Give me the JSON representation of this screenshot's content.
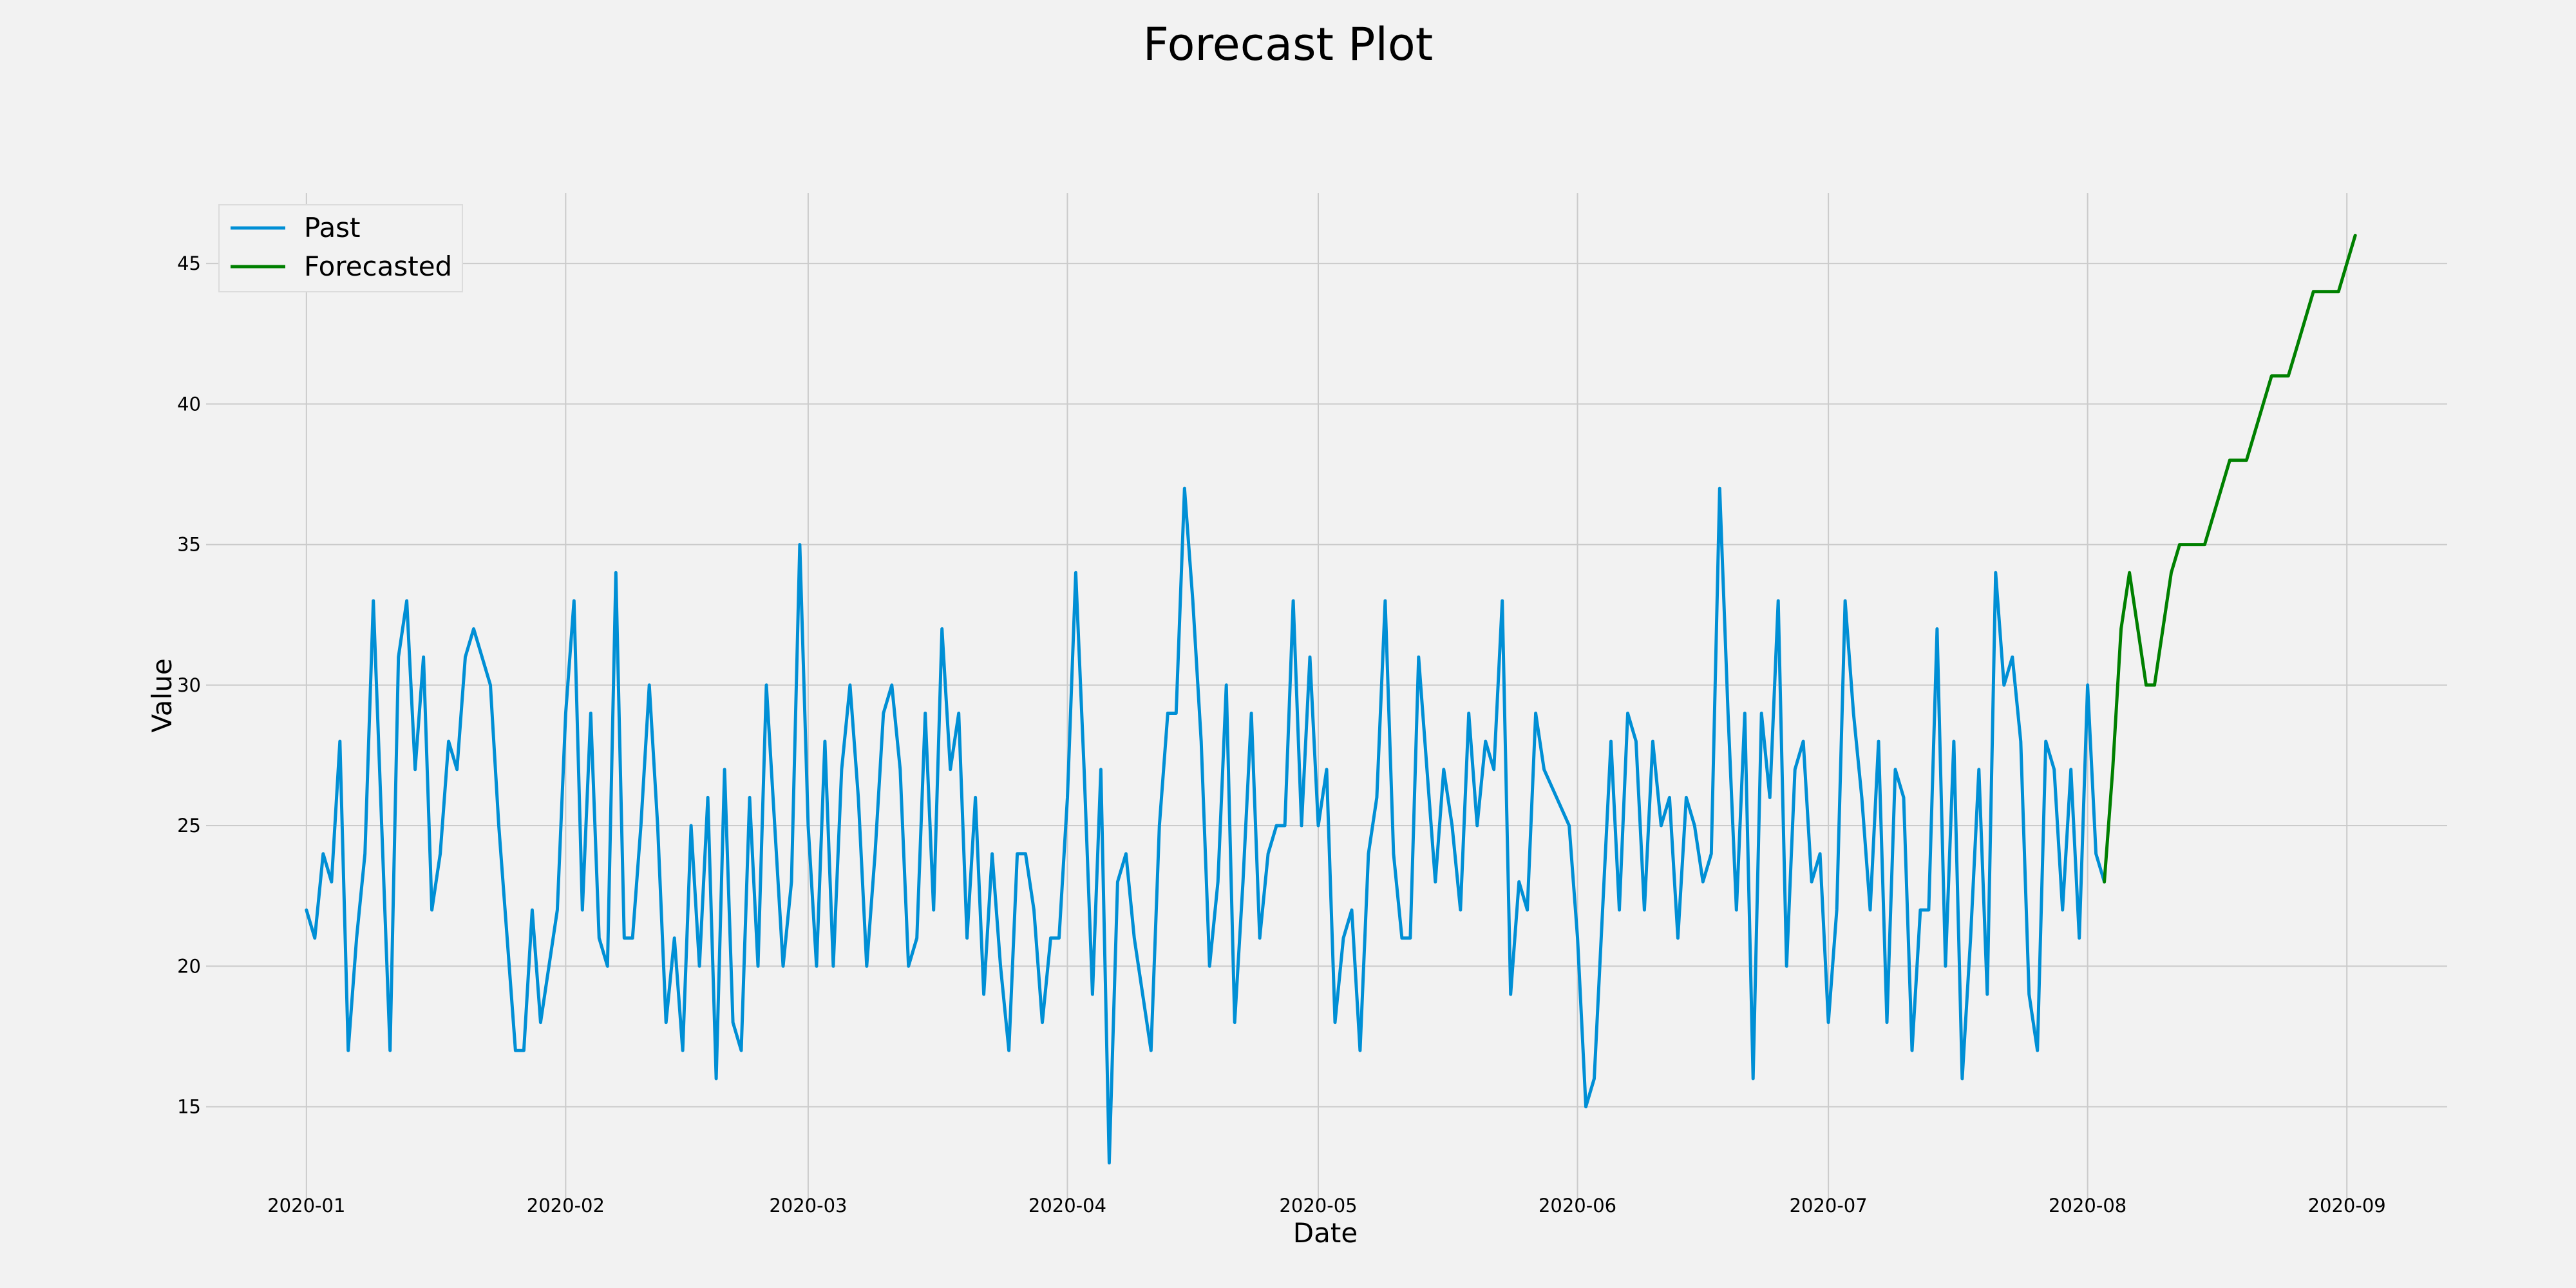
{
  "chart_data": {
    "type": "line",
    "title": "Forecast Plot",
    "xlabel": "Date",
    "ylabel": "Value",
    "xlim": [
      "2019-12-20",
      "2020-09-13"
    ],
    "ylim": [
      11.3,
      47.5
    ],
    "x_ticks": [
      "2020-01",
      "2020-02",
      "2020-03",
      "2020-04",
      "2020-05",
      "2020-06",
      "2020-07",
      "2020-08",
      "2020-09"
    ],
    "y_ticks": [
      15,
      20,
      25,
      30,
      35,
      40,
      45
    ],
    "grid": true,
    "legend_position": "top-left",
    "series": [
      {
        "name": "Past",
        "color": "#008fd5",
        "points": [
          [
            "2020-01-01",
            22
          ],
          [
            "2020-01-02",
            21
          ],
          [
            "2020-01-03",
            24
          ],
          [
            "2020-01-04",
            23
          ],
          [
            "2020-01-05",
            28
          ],
          [
            "2020-01-06",
            17
          ],
          [
            "2020-01-07",
            21
          ],
          [
            "2020-01-08",
            24
          ],
          [
            "2020-01-09",
            33
          ],
          [
            "2020-01-10",
            25
          ],
          [
            "2020-01-11",
            17
          ],
          [
            "2020-01-12",
            31
          ],
          [
            "2020-01-13",
            33
          ],
          [
            "2020-01-14",
            27
          ],
          [
            "2020-01-15",
            31
          ],
          [
            "2020-01-16",
            22
          ],
          [
            "2020-01-17",
            24
          ],
          [
            "2020-01-18",
            28
          ],
          [
            "2020-01-19",
            27
          ],
          [
            "2020-01-20",
            31
          ],
          [
            "2020-01-21",
            32
          ],
          [
            "2020-01-23",
            30
          ],
          [
            "2020-01-24",
            25
          ],
          [
            "2020-01-25",
            21
          ],
          [
            "2020-01-26",
            17
          ],
          [
            "2020-01-27",
            17
          ],
          [
            "2020-01-28",
            22
          ],
          [
            "2020-01-29",
            18
          ],
          [
            "2020-01-31",
            22
          ],
          [
            "2020-02-01",
            29
          ],
          [
            "2020-02-02",
            33
          ],
          [
            "2020-02-03",
            22
          ],
          [
            "2020-02-04",
            29
          ],
          [
            "2020-02-05",
            21
          ],
          [
            "2020-02-06",
            20
          ],
          [
            "2020-02-07",
            34
          ],
          [
            "2020-02-08",
            21
          ],
          [
            "2020-02-09",
            21
          ],
          [
            "2020-02-10",
            25
          ],
          [
            "2020-02-11",
            30
          ],
          [
            "2020-02-12",
            25
          ],
          [
            "2020-02-13",
            18
          ],
          [
            "2020-02-14",
            21
          ],
          [
            "2020-02-15",
            17
          ],
          [
            "2020-02-16",
            25
          ],
          [
            "2020-02-17",
            20
          ],
          [
            "2020-02-18",
            26
          ],
          [
            "2020-02-19",
            16
          ],
          [
            "2020-02-20",
            27
          ],
          [
            "2020-02-21",
            18
          ],
          [
            "2020-02-22",
            17
          ],
          [
            "2020-02-23",
            26
          ],
          [
            "2020-02-24",
            20
          ],
          [
            "2020-02-25",
            30
          ],
          [
            "2020-02-26",
            25
          ],
          [
            "2020-02-27",
            20
          ],
          [
            "2020-02-28",
            23
          ],
          [
            "2020-02-29",
            35
          ],
          [
            "2020-03-01",
            25
          ],
          [
            "2020-03-02",
            20
          ],
          [
            "2020-03-03",
            28
          ],
          [
            "2020-03-04",
            20
          ],
          [
            "2020-03-05",
            27
          ],
          [
            "2020-03-06",
            30
          ],
          [
            "2020-03-07",
            26
          ],
          [
            "2020-03-08",
            20
          ],
          [
            "2020-03-09",
            24
          ],
          [
            "2020-03-10",
            29
          ],
          [
            "2020-03-11",
            30
          ],
          [
            "2020-03-12",
            27
          ],
          [
            "2020-03-13",
            20
          ],
          [
            "2020-03-14",
            21
          ],
          [
            "2020-03-15",
            29
          ],
          [
            "2020-03-16",
            22
          ],
          [
            "2020-03-17",
            32
          ],
          [
            "2020-03-18",
            27
          ],
          [
            "2020-03-19",
            29
          ],
          [
            "2020-03-20",
            21
          ],
          [
            "2020-03-21",
            26
          ],
          [
            "2020-03-22",
            19
          ],
          [
            "2020-03-23",
            24
          ],
          [
            "2020-03-24",
            20
          ],
          [
            "2020-03-25",
            17
          ],
          [
            "2020-03-26",
            24
          ],
          [
            "2020-03-27",
            24
          ],
          [
            "2020-03-28",
            22
          ],
          [
            "2020-03-29",
            18
          ],
          [
            "2020-03-30",
            21
          ],
          [
            "2020-03-31",
            21
          ],
          [
            "2020-04-01",
            26
          ],
          [
            "2020-04-02",
            34
          ],
          [
            "2020-04-03",
            27
          ],
          [
            "2020-04-04",
            19
          ],
          [
            "2020-04-05",
            27
          ],
          [
            "2020-04-06",
            13
          ],
          [
            "2020-04-07",
            23
          ],
          [
            "2020-04-08",
            24
          ],
          [
            "2020-04-09",
            21
          ],
          [
            "2020-04-11",
            17
          ],
          [
            "2020-04-12",
            25
          ],
          [
            "2020-04-13",
            29
          ],
          [
            "2020-04-14",
            29
          ],
          [
            "2020-04-15",
            37
          ],
          [
            "2020-04-16",
            33
          ],
          [
            "2020-04-17",
            28
          ],
          [
            "2020-04-18",
            20
          ],
          [
            "2020-04-19",
            23
          ],
          [
            "2020-04-20",
            30
          ],
          [
            "2020-04-21",
            18
          ],
          [
            "2020-04-22",
            23
          ],
          [
            "2020-04-23",
            29
          ],
          [
            "2020-04-24",
            21
          ],
          [
            "2020-04-25",
            24
          ],
          [
            "2020-04-26",
            25
          ],
          [
            "2020-04-27",
            25
          ],
          [
            "2020-04-28",
            33
          ],
          [
            "2020-04-29",
            25
          ],
          [
            "2020-04-30",
            31
          ],
          [
            "2020-05-01",
            25
          ],
          [
            "2020-05-02",
            27
          ],
          [
            "2020-05-03",
            18
          ],
          [
            "2020-05-04",
            21
          ],
          [
            "2020-05-05",
            22
          ],
          [
            "2020-05-06",
            17
          ],
          [
            "2020-05-07",
            24
          ],
          [
            "2020-05-08",
            26
          ],
          [
            "2020-05-09",
            33
          ],
          [
            "2020-05-10",
            24
          ],
          [
            "2020-05-11",
            21
          ],
          [
            "2020-05-12",
            21
          ],
          [
            "2020-05-13",
            31
          ],
          [
            "2020-05-14",
            27
          ],
          [
            "2020-05-15",
            23
          ],
          [
            "2020-05-16",
            27
          ],
          [
            "2020-05-17",
            25
          ],
          [
            "2020-05-18",
            22
          ],
          [
            "2020-05-19",
            29
          ],
          [
            "2020-05-20",
            25
          ],
          [
            "2020-05-21",
            28
          ],
          [
            "2020-05-22",
            27
          ],
          [
            "2020-05-23",
            33
          ],
          [
            "2020-05-24",
            19
          ],
          [
            "2020-05-25",
            23
          ],
          [
            "2020-05-26",
            22
          ],
          [
            "2020-05-27",
            29
          ],
          [
            "2020-05-28",
            27
          ],
          [
            "2020-05-31",
            25
          ],
          [
            "2020-06-01",
            21
          ],
          [
            "2020-06-02",
            15
          ],
          [
            "2020-06-03",
            16
          ],
          [
            "2020-06-04",
            22
          ],
          [
            "2020-06-05",
            28
          ],
          [
            "2020-06-06",
            22
          ],
          [
            "2020-06-07",
            29
          ],
          [
            "2020-06-08",
            28
          ],
          [
            "2020-06-09",
            22
          ],
          [
            "2020-06-10",
            28
          ],
          [
            "2020-06-11",
            25
          ],
          [
            "2020-06-12",
            26
          ],
          [
            "2020-06-13",
            21
          ],
          [
            "2020-06-14",
            26
          ],
          [
            "2020-06-15",
            25
          ],
          [
            "2020-06-16",
            23
          ],
          [
            "2020-06-17",
            24
          ],
          [
            "2020-06-18",
            37
          ],
          [
            "2020-06-19",
            29
          ],
          [
            "2020-06-20",
            22
          ],
          [
            "2020-06-21",
            29
          ],
          [
            "2020-06-22",
            16
          ],
          [
            "2020-06-23",
            29
          ],
          [
            "2020-06-24",
            26
          ],
          [
            "2020-06-25",
            33
          ],
          [
            "2020-06-26",
            20
          ],
          [
            "2020-06-27",
            27
          ],
          [
            "2020-06-28",
            28
          ],
          [
            "2020-06-29",
            23
          ],
          [
            "2020-06-30",
            24
          ],
          [
            "2020-07-01",
            18
          ],
          [
            "2020-07-02",
            22
          ],
          [
            "2020-07-03",
            33
          ],
          [
            "2020-07-04",
            29
          ],
          [
            "2020-07-05",
            26
          ],
          [
            "2020-07-06",
            22
          ],
          [
            "2020-07-07",
            28
          ],
          [
            "2020-07-08",
            18
          ],
          [
            "2020-07-09",
            27
          ],
          [
            "2020-07-10",
            26
          ],
          [
            "2020-07-11",
            17
          ],
          [
            "2020-07-12",
            22
          ],
          [
            "2020-07-13",
            22
          ],
          [
            "2020-07-14",
            32
          ],
          [
            "2020-07-15",
            20
          ],
          [
            "2020-07-16",
            28
          ],
          [
            "2020-07-17",
            16
          ],
          [
            "2020-07-18",
            21
          ],
          [
            "2020-07-19",
            27
          ],
          [
            "2020-07-20",
            19
          ],
          [
            "2020-07-21",
            34
          ],
          [
            "2020-07-22",
            30
          ],
          [
            "2020-07-23",
            31
          ],
          [
            "2020-07-24",
            28
          ],
          [
            "2020-07-25",
            19
          ],
          [
            "2020-07-26",
            17
          ],
          [
            "2020-07-27",
            28
          ],
          [
            "2020-07-28",
            27
          ],
          [
            "2020-07-29",
            22
          ],
          [
            "2020-07-30",
            27
          ],
          [
            "2020-07-31",
            21
          ],
          [
            "2020-08-01",
            30
          ],
          [
            "2020-08-02",
            24
          ],
          [
            "2020-08-03",
            23
          ]
        ]
      },
      {
        "name": "Forecasted",
        "color": "#008000",
        "points": [
          [
            "2020-08-03",
            23
          ],
          [
            "2020-08-04",
            27
          ],
          [
            "2020-08-05",
            32
          ],
          [
            "2020-08-06",
            34
          ],
          [
            "2020-08-07",
            32
          ],
          [
            "2020-08-08",
            30
          ],
          [
            "2020-08-09",
            30
          ],
          [
            "2020-08-10",
            32
          ],
          [
            "2020-08-11",
            34
          ],
          [
            "2020-08-12",
            35
          ],
          [
            "2020-08-13",
            35
          ],
          [
            "2020-08-14",
            35
          ],
          [
            "2020-08-15",
            35
          ],
          [
            "2020-08-16",
            36
          ],
          [
            "2020-08-17",
            37
          ],
          [
            "2020-08-18",
            38
          ],
          [
            "2020-08-19",
            38
          ],
          [
            "2020-08-20",
            38
          ],
          [
            "2020-08-21",
            39
          ],
          [
            "2020-08-22",
            40
          ],
          [
            "2020-08-23",
            41
          ],
          [
            "2020-08-24",
            41
          ],
          [
            "2020-08-25",
            41
          ],
          [
            "2020-08-26",
            42
          ],
          [
            "2020-08-27",
            43
          ],
          [
            "2020-08-28",
            44
          ],
          [
            "2020-08-29",
            44
          ],
          [
            "2020-08-30",
            44
          ],
          [
            "2020-08-31",
            44
          ],
          [
            "2020-09-01",
            45
          ],
          [
            "2020-09-02",
            46
          ]
        ]
      }
    ]
  }
}
